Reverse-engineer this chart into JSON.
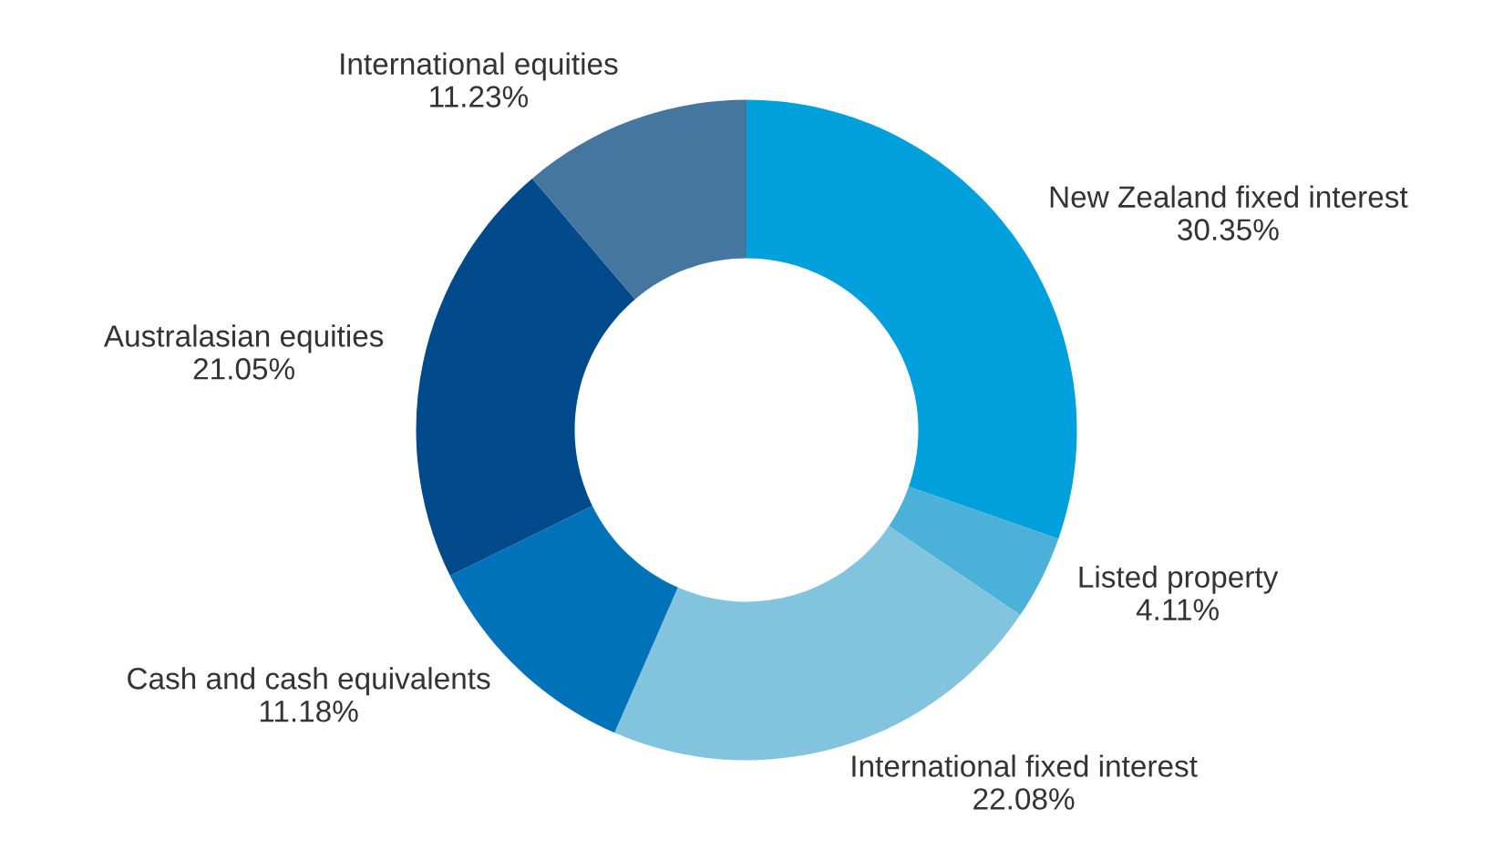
{
  "chart_data": {
    "type": "donut",
    "categories": [
      "New Zealand fixed interest",
      "Listed property",
      "International fixed interest",
      "Cash and cash equivalents",
      "Australasian equities",
      "International equities"
    ],
    "values": [
      30.35,
      4.11,
      22.08,
      11.18,
      21.05,
      11.23
    ],
    "colors": [
      "#00a0dc",
      "#4bb1d9",
      "#82c3de",
      "#0072b9",
      "#004a8b",
      "#45769f"
    ],
    "value_labels": [
      "30.35%",
      "4.11%",
      "22.08%",
      "11.18%",
      "21.05%",
      "11.23%"
    ]
  }
}
